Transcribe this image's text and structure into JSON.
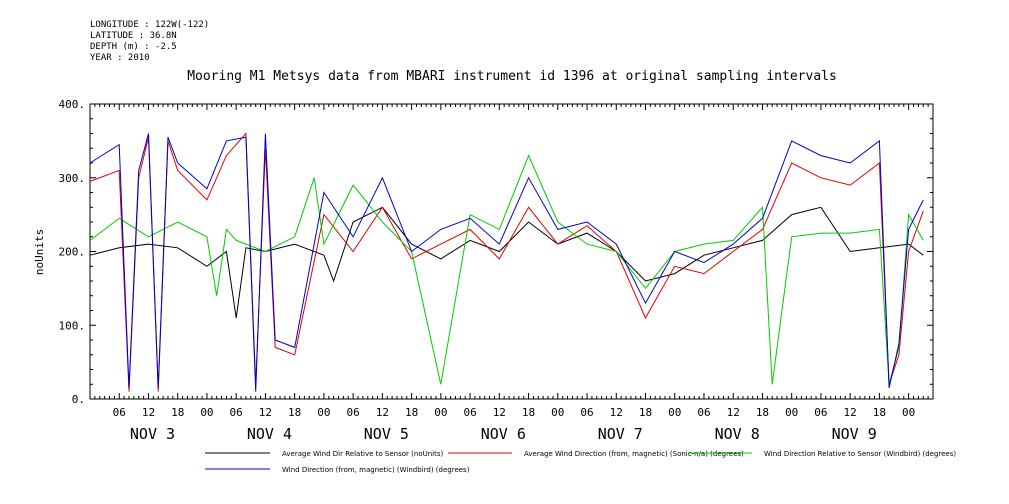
{
  "meta": {
    "longitude": "LONGITUDE : 122W(-122)",
    "latitude": "LATITUDE : 36.8N",
    "depth": "DEPTH (m) : -2.5",
    "year": "YEAR : 2010"
  },
  "chart_data": {
    "type": "line",
    "title": "Mooring M1 Metsys data from MBARI instrument id 1396 at original sampling intervals",
    "ylabel": "noUnits",
    "ylim": [
      0,
      400
    ],
    "yticks": [
      "0.",
      "100.",
      "200.",
      "300.",
      "400."
    ],
    "y_tick_values": [
      0,
      100,
      200,
      300,
      400
    ],
    "x_hour_range": [
      0,
      173
    ],
    "x_hour_ticks": [
      "06",
      "12",
      "18",
      "00"
    ],
    "days": [
      "NOV 3",
      "NOV 4",
      "NOV 5",
      "NOV 6",
      "NOV 7",
      "NOV 8",
      "NOV 9"
    ],
    "grid": false,
    "legend_placement": "bottom",
    "series": [
      {
        "name": "Average Wind Dir Relative to Sensor (noUnits)",
        "color": "#000000",
        "x": [
          0,
          6,
          12,
          18,
          24,
          28,
          30,
          32,
          36,
          42,
          48,
          50,
          54,
          60,
          66,
          72,
          78,
          84,
          90,
          96,
          102,
          108,
          114,
          120,
          126,
          132,
          138,
          144,
          150,
          156,
          162,
          168,
          171
        ],
        "y": [
          195,
          205,
          210,
          205,
          180,
          200,
          110,
          205,
          200,
          210,
          195,
          160,
          240,
          260,
          210,
          190,
          215,
          200,
          240,
          210,
          225,
          200,
          160,
          170,
          195,
          205,
          215,
          250,
          260,
          200,
          205,
          210,
          195
        ]
      },
      {
        "name": "Average Wind Direction (from, magnetic) (Sonic-n/a) (degrees)",
        "color": "#e00000",
        "x": [
          0,
          6,
          8,
          10,
          12,
          14,
          16,
          18,
          24,
          28,
          32,
          34,
          36,
          38,
          42,
          48,
          54,
          60,
          66,
          72,
          78,
          84,
          90,
          96,
          102,
          108,
          114,
          120,
          126,
          132,
          138,
          144,
          150,
          156,
          162,
          164,
          166,
          168,
          171
        ],
        "y": [
          295,
          310,
          10,
          300,
          355,
          10,
          350,
          310,
          270,
          330,
          360,
          20,
          340,
          70,
          60,
          250,
          200,
          260,
          190,
          210,
          230,
          190,
          260,
          210,
          235,
          200,
          110,
          180,
          170,
          200,
          230,
          320,
          300,
          290,
          320,
          20,
          60,
          200,
          255
        ]
      },
      {
        "name": "Wind Direction Relative to Sensor (Windbird) (degrees)",
        "color": "#00cc00",
        "x": [
          0,
          6,
          12,
          18,
          24,
          26,
          28,
          30,
          36,
          42,
          46,
          48,
          54,
          60,
          66,
          72,
          78,
          84,
          90,
          96,
          102,
          108,
          114,
          120,
          126,
          132,
          138,
          140,
          144,
          150,
          156,
          162,
          164,
          166,
          168,
          171
        ],
        "y": [
          215,
          245,
          220,
          240,
          220,
          140,
          230,
          215,
          200,
          220,
          300,
          210,
          290,
          240,
          200,
          20,
          250,
          230,
          330,
          240,
          210,
          200,
          150,
          200,
          210,
          215,
          260,
          20,
          220,
          225,
          225,
          230,
          20,
          70,
          250,
          215
        ]
      },
      {
        "name": "Wind Direction (from, magnetic) (Windbird) (degrees)",
        "color": "#0000cc",
        "x": [
          0,
          6,
          8,
          10,
          12,
          14,
          16,
          18,
          24,
          28,
          32,
          34,
          36,
          38,
          42,
          48,
          54,
          60,
          66,
          72,
          78,
          84,
          90,
          96,
          102,
          108,
          114,
          120,
          126,
          132,
          138,
          144,
          150,
          156,
          162,
          164,
          166,
          168,
          171
        ],
        "y": [
          320,
          345,
          15,
          310,
          360,
          15,
          355,
          320,
          285,
          350,
          355,
          10,
          360,
          80,
          70,
          280,
          220,
          300,
          200,
          230,
          245,
          210,
          300,
          230,
          240,
          210,
          130,
          200,
          185,
          210,
          245,
          350,
          330,
          320,
          350,
          15,
          75,
          230,
          270
        ]
      }
    ]
  }
}
